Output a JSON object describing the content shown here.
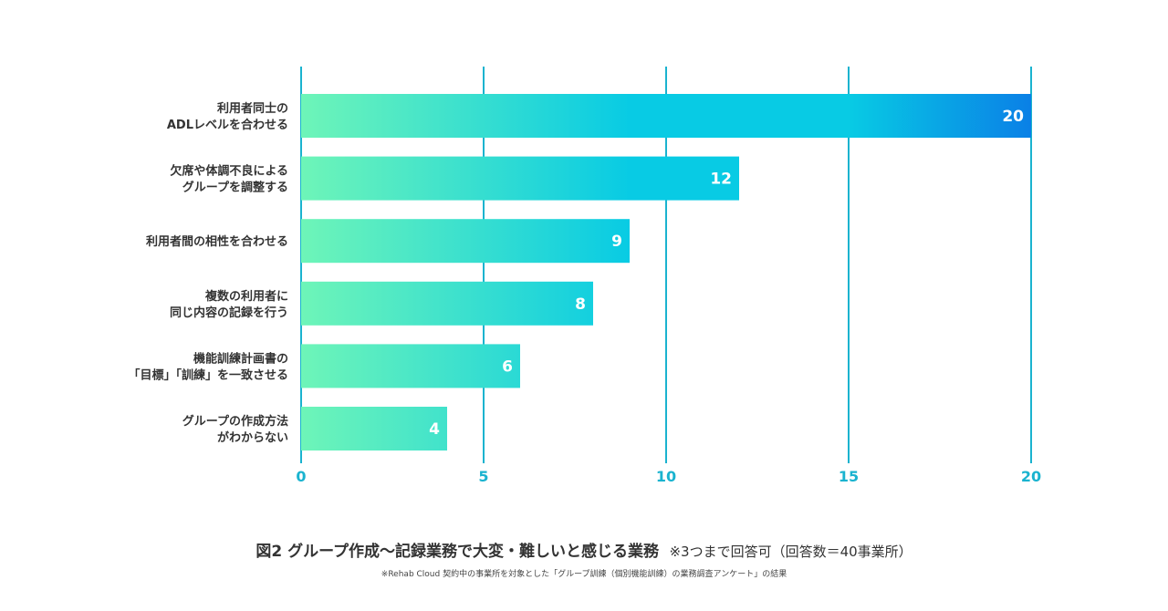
{
  "chart_data": {
    "type": "bar",
    "orientation": "horizontal",
    "categories": [
      [
        "利用者同士の",
        "ADLレベルを合わせる"
      ],
      [
        "欠席や体調不良による",
        "グループを調整する"
      ],
      [
        "利用者間の相性を合わせる"
      ],
      [
        "複数の利用者に",
        "同じ内容の記録を行う"
      ],
      [
        "機能訓練計画書の",
        "「目標」「訓練」を一致させる"
      ],
      [
        "グループの作成方法",
        "がわからない"
      ]
    ],
    "values": [
      20,
      12,
      9,
      8,
      6,
      4
    ],
    "value_labels": [
      "20",
      "12",
      "9",
      "8",
      "6",
      "4"
    ],
    "xlim": [
      0,
      20
    ],
    "xticks": [
      0,
      5,
      10,
      15,
      20
    ],
    "xtick_labels": [
      "0",
      "5",
      "10",
      "15",
      "20"
    ],
    "grid": true,
    "title": "図2 グループ作成〜記録業務で大変・難しいと感じる業務",
    "note": "※3つまで回答可（回答数＝40事業所）",
    "source": "※Rehab Cloud 契約中の事業所を対象とした「グループ訓練（個別機能訓練）の業務調査アンケート」の結果"
  },
  "colors": {
    "gradient_start": "#6ef5b8",
    "gradient_mid": "#08cbe4",
    "gradient_end": "#0a80e6",
    "gridline": "#1ab3cf",
    "label_text": "#333333"
  }
}
